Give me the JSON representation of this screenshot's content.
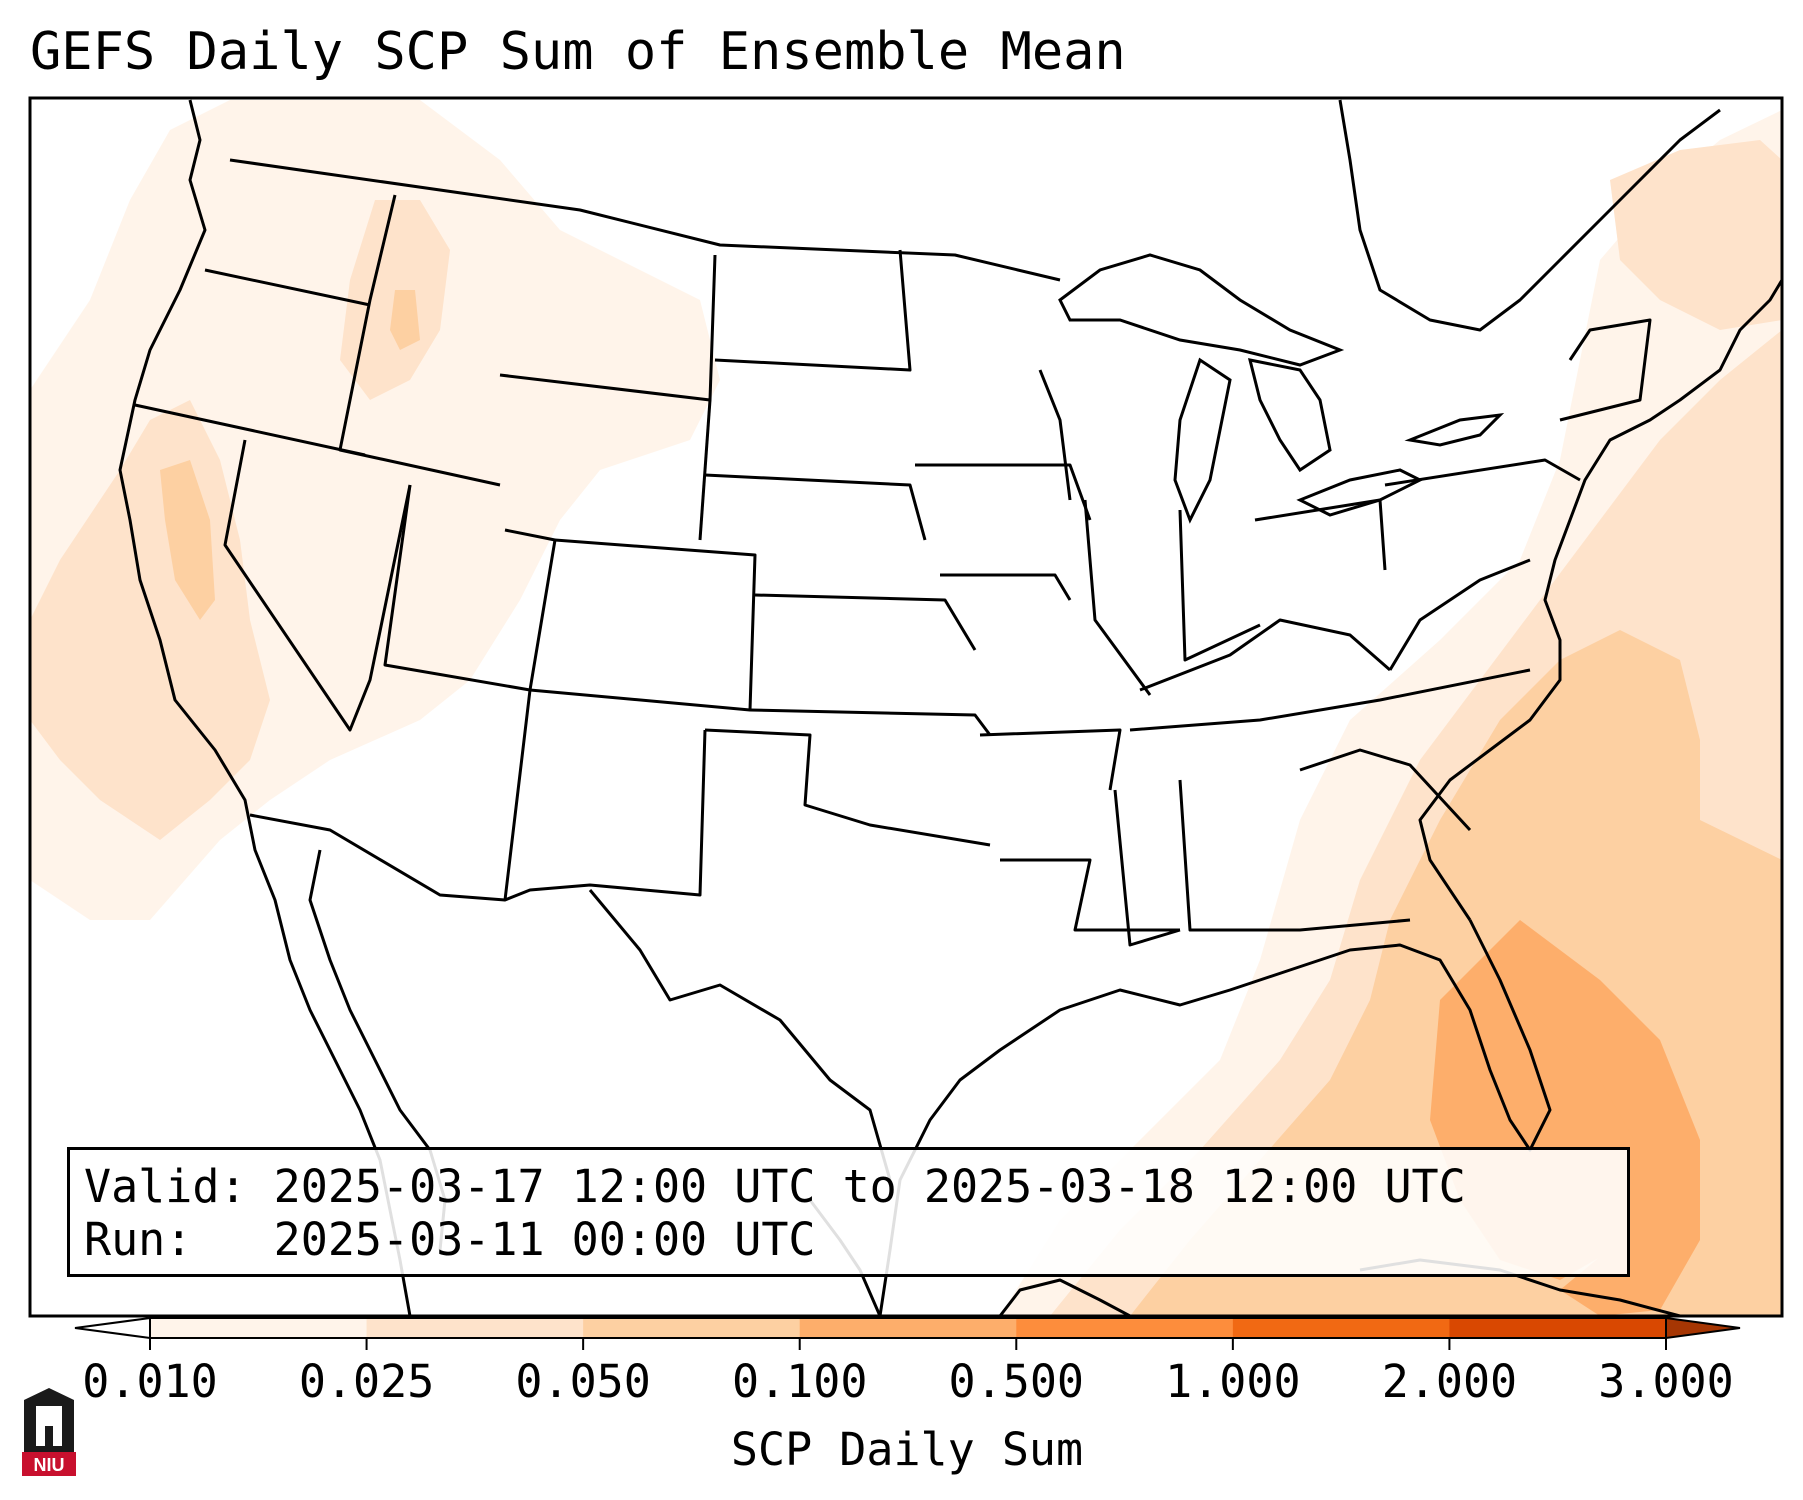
{
  "title": "GEFS Daily SCP Sum of Ensemble Mean",
  "info": {
    "valid_label": "Valid:",
    "valid_value": "2025-03-17 12:00 UTC to 2025-03-18 12:00 UTC",
    "run_label": "Run:",
    "run_value": "2025-03-11 00:00 UTC"
  },
  "colorbar": {
    "label": "SCP Daily Sum",
    "ticks": [
      "0.010",
      "0.025",
      "0.050",
      "0.100",
      "0.500",
      "1.000",
      "2.000",
      "3.000"
    ],
    "colors": [
      "#fff4ea",
      "#fee3cb",
      "#fdd0a2",
      "#fdae6b",
      "#fd8d3c",
      "#f16913",
      "#d94801",
      "#a63603"
    ],
    "extend": "both"
  },
  "legend_colors": {
    "outline": "#000000",
    "background": "#ffffff"
  },
  "logo": {
    "text": "NIU",
    "colors": [
      "#c8102e",
      "#1a1a1a"
    ]
  }
}
